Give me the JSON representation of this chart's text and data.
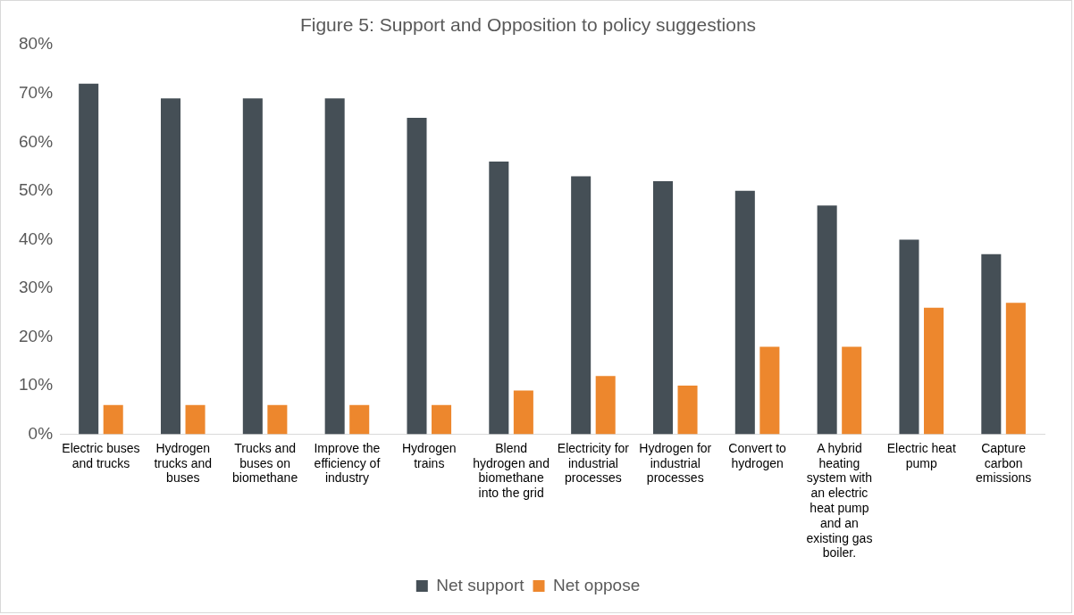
{
  "chart_data": {
    "type": "bar",
    "title": "Figure 5: Support and Opposition to policy suggestions",
    "categories": [
      "Electric buses and trucks",
      "Hydrogen trucks and buses",
      "Trucks and buses on biomethane",
      "Improve the efficiency of industry",
      "Hydrogen trains",
      "Blend hydrogen and biomethane into the grid",
      "Electricity for industrial processes",
      "Hydrogen for industrial processes",
      "Convert to hydrogen",
      "A hybrid heating system with an electric heat pump and an existing gas boiler.",
      "Electric heat pump",
      "Capture carbon emissions"
    ],
    "series": [
      {
        "name": "Net support",
        "color": "#454f56",
        "values": [
          72,
          69,
          69,
          69,
          65,
          56,
          53,
          52,
          50,
          47,
          40,
          37
        ]
      },
      {
        "name": "Net oppose",
        "color": "#ed872d",
        "values": [
          6,
          6,
          6,
          6,
          6,
          9,
          12,
          10,
          18,
          18,
          26,
          27
        ]
      }
    ],
    "ylim": [
      0,
      80
    ],
    "yticks": [
      {
        "value": 0,
        "label": "0%"
      },
      {
        "value": 10,
        "label": "10%"
      },
      {
        "value": 20,
        "label": "20%"
      },
      {
        "value": 30,
        "label": "30%"
      },
      {
        "value": 40,
        "label": "40%"
      },
      {
        "value": 50,
        "label": "50%"
      },
      {
        "value": 60,
        "label": "60%"
      },
      {
        "value": 70,
        "label": "70%"
      },
      {
        "value": 80,
        "label": "80%"
      }
    ],
    "grid": false,
    "legend": "bottom"
  }
}
